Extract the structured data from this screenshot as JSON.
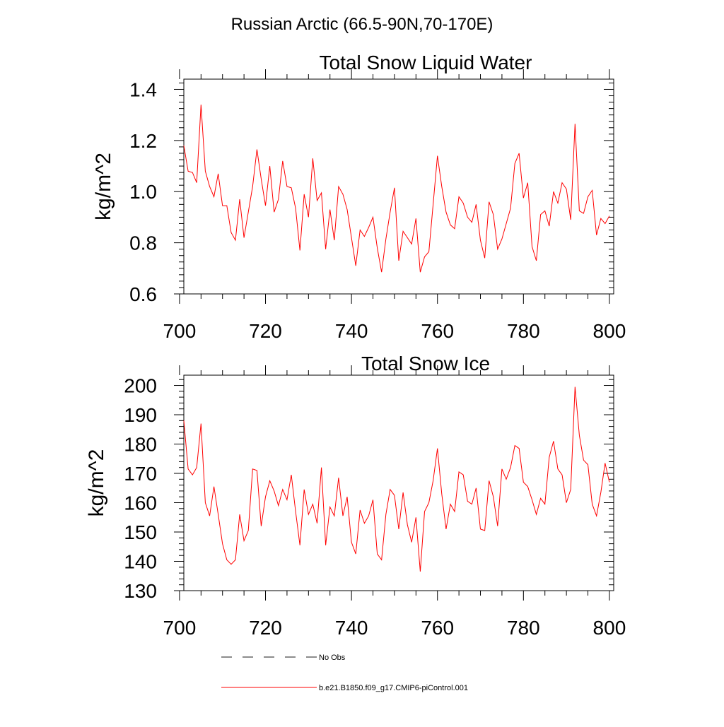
{
  "main_title": "Russian Arctic (66.5-90N,70-170E)",
  "legend": {
    "entries": [
      {
        "label": "No Obs",
        "color": "#1a1a1a",
        "style": "dashed"
      },
      {
        "label": "b.e21.B1850.f09_g17.CMIP6-piControl.001",
        "color": "#ff0000",
        "style": "solid"
      }
    ]
  },
  "chart_data": [
    {
      "type": "line",
      "title": "Total Snow Liquid Water",
      "xlabel": "",
      "ylabel": "kg/m^2",
      "xlim": [
        701,
        801
      ],
      "ylim": [
        0.6,
        1.44
      ],
      "xticks": [
        700,
        720,
        740,
        760,
        780,
        800
      ],
      "xtick_labels": [
        "700",
        "720",
        "740",
        "760",
        "780",
        "800"
      ],
      "yticks": [
        0.6,
        0.8,
        1.0,
        1.2,
        1.4
      ],
      "ytick_labels": [
        "0.6",
        "0.8",
        "1.0",
        "1.2",
        "1.4"
      ],
      "x_start": 701,
      "series": [
        {
          "name": "b.e21.B1850.f09_g17.CMIP6-piControl.001",
          "color": "#ff0000",
          "values": [
            1.18,
            1.08,
            1.075,
            1.035,
            1.34,
            1.08,
            1.02,
            0.98,
            1.07,
            0.945,
            0.945,
            0.84,
            0.81,
            0.97,
            0.82,
            0.92,
            1.02,
            1.165,
            1.05,
            0.945,
            1.1,
            0.92,
            0.97,
            1.12,
            1.02,
            1.015,
            0.935,
            0.77,
            0.99,
            0.9,
            1.13,
            0.965,
            0.995,
            0.775,
            0.93,
            0.81,
            1.02,
            0.99,
            0.93,
            0.82,
            0.71,
            0.85,
            0.825,
            0.86,
            0.9,
            0.78,
            0.685,
            0.815,
            0.92,
            1.015,
            0.73,
            0.845,
            0.82,
            0.795,
            0.895,
            0.685,
            0.745,
            0.765,
            0.95,
            1.14,
            1.02,
            0.92,
            0.87,
            0.855,
            0.98,
            0.955,
            0.9,
            0.88,
            0.95,
            0.81,
            0.74,
            0.96,
            0.91,
            0.775,
            0.815,
            0.875,
            0.935,
            1.11,
            1.15,
            0.975,
            1.035,
            0.785,
            0.73,
            0.91,
            0.925,
            0.865,
            1.0,
            0.955,
            1.035,
            1.01,
            0.89,
            1.265,
            0.925,
            0.915,
            0.98,
            1.005,
            0.83,
            0.895,
            0.875,
            0.905
          ]
        }
      ]
    },
    {
      "type": "line",
      "title": "Total Snow Ice",
      "xlabel": "",
      "ylabel": "kg/m^2",
      "xlim": [
        701,
        801
      ],
      "ylim": [
        130,
        203.5
      ],
      "xticks": [
        700,
        720,
        740,
        760,
        780,
        800
      ],
      "xtick_labels": [
        "700",
        "720",
        "740",
        "760",
        "780",
        "800"
      ],
      "yticks": [
        130,
        140,
        150,
        160,
        170,
        180,
        190,
        200
      ],
      "ytick_labels": [
        "130",
        "140",
        "150",
        "160",
        "170",
        "180",
        "190",
        "200"
      ],
      "x_start": 701,
      "series": [
        {
          "name": "b.e21.B1850.f09_g17.CMIP6-piControl.001",
          "color": "#ff0000",
          "values": [
            188,
            171.5,
            169.5,
            172,
            187,
            160,
            155.5,
            165.5,
            156,
            146,
            140.5,
            139,
            140.5,
            156,
            147,
            150.5,
            171.5,
            171,
            152,
            162,
            167.5,
            164,
            159,
            164.5,
            161,
            169.5,
            157,
            145.5,
            164.5,
            156,
            159.5,
            153,
            172,
            145.5,
            158.5,
            155.5,
            168.5,
            155.5,
            162,
            146.5,
            142.5,
            157.5,
            153,
            155.5,
            161,
            142.5,
            140.5,
            156,
            164.5,
            162.5,
            151,
            163.5,
            152.5,
            146.5,
            155,
            136.5,
            157,
            160,
            167.5,
            178.5,
            163,
            151,
            159.5,
            157,
            170.5,
            169.5,
            160.5,
            159.5,
            165,
            151,
            150.5,
            167.5,
            162,
            152,
            171.5,
            168,
            172,
            179.5,
            178.5,
            167,
            165.5,
            161,
            156,
            161.5,
            159.5,
            175.5,
            181,
            171.5,
            169.5,
            160,
            164.5,
            199.5,
            183,
            174.5,
            173,
            159.5,
            155.5,
            163.5,
            173.5,
            167
          ]
        }
      ]
    }
  ]
}
